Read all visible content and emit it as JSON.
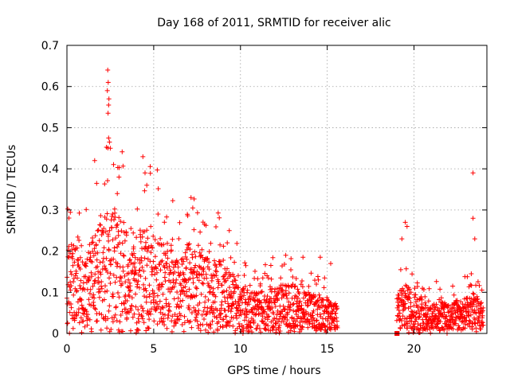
{
  "chart_data": {
    "type": "scatter",
    "title": "Day 168 of 2011, SRMTID for receiver alic",
    "xlabel": "GPS time / hours",
    "ylabel": "SRMTID / TECUs",
    "xlim": [
      0,
      24.2
    ],
    "ylim": [
      0,
      0.7
    ],
    "xticks": [
      "0",
      "5",
      "10",
      "15",
      "20"
    ],
    "yticks": [
      "0",
      "0.1",
      "0.2",
      "0.3",
      "0.4",
      "0.5",
      "0.6",
      "0.7"
    ],
    "grid": true,
    "marker": "+",
    "color": "#ff0000",
    "series": [
      {
        "name": "SRMTID",
        "seed": 168,
        "envelope_hours": [
          0,
          0.5,
          1,
          1.5,
          2,
          2.5,
          3,
          3.5,
          4,
          4.5,
          5,
          5.5,
          6,
          6.5,
          7,
          7.5,
          8,
          8.5,
          9,
          9.5,
          10,
          10.5,
          11,
          11.5,
          12,
          12.5,
          13,
          13.5,
          14,
          14.5,
          15,
          15.5,
          19.1,
          19.5,
          20,
          20.5,
          21,
          21.5,
          22,
          22.5,
          23,
          23.5,
          24
        ],
        "envelope_typical": [
          0.13,
          0.13,
          0.1,
          0.14,
          0.16,
          0.19,
          0.17,
          0.15,
          0.14,
          0.16,
          0.15,
          0.14,
          0.12,
          0.1,
          0.13,
          0.12,
          0.11,
          0.11,
          0.1,
          0.09,
          0.07,
          0.06,
          0.06,
          0.06,
          0.07,
          0.07,
          0.07,
          0.06,
          0.06,
          0.05,
          0.05,
          0.04,
          0.06,
          0.07,
          0.06,
          0.05,
          0.04,
          0.05,
          0.04,
          0.05,
          0.05,
          0.06,
          0.04
        ],
        "gaps_hours": [
          [
            15.6,
            19.0
          ]
        ],
        "peaks": [
          [
            2.35,
            0.64
          ],
          [
            2.38,
            0.61
          ],
          [
            2.33,
            0.59
          ],
          [
            2.42,
            0.57
          ],
          [
            2.4,
            0.555
          ],
          [
            2.37,
            0.535
          ],
          [
            2.4,
            0.475
          ],
          [
            2.45,
            0.465
          ],
          [
            2.5,
            0.45
          ],
          [
            1.6,
            0.42
          ],
          [
            4.5,
            0.39
          ],
          [
            4.6,
            0.36
          ],
          [
            7.15,
            0.33
          ],
          [
            7.25,
            0.305
          ],
          [
            3.0,
            0.38
          ],
          [
            2.9,
            0.34
          ],
          [
            23.4,
            0.39
          ],
          [
            23.4,
            0.28
          ],
          [
            19.5,
            0.27
          ],
          [
            19.6,
            0.26
          ],
          [
            23.5,
            0.23
          ],
          [
            13.6,
            0.185
          ],
          [
            14.6,
            0.185
          ],
          [
            15.2,
            0.17
          ],
          [
            19.3,
            0.23
          ]
        ]
      }
    ]
  }
}
